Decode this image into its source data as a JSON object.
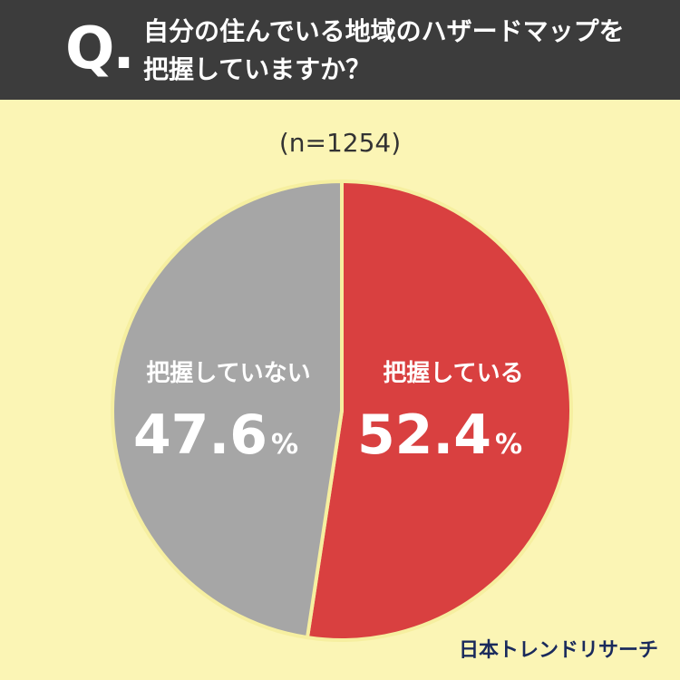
{
  "header": {
    "q_mark": "Q.",
    "question_line1": "自分の住んでいる地域のハザードマップを",
    "question_line2": "把握していますか？"
  },
  "chart_data": {
    "type": "pie",
    "n_label": "(n=1254)",
    "slices": [
      {
        "label": "把握している",
        "value": 52.4,
        "value_label": "52.4",
        "unit": "%",
        "color": "#D94040"
      },
      {
        "label": "把握していない",
        "value": 47.6,
        "value_label": "47.6",
        "unit": "%",
        "color": "#A6A6A6"
      }
    ]
  },
  "colors": {
    "background": "#FBF5B5",
    "header": "#3C3C3C",
    "separator": "#F6EFA0"
  },
  "logo": "日本トレンドリサーチ"
}
